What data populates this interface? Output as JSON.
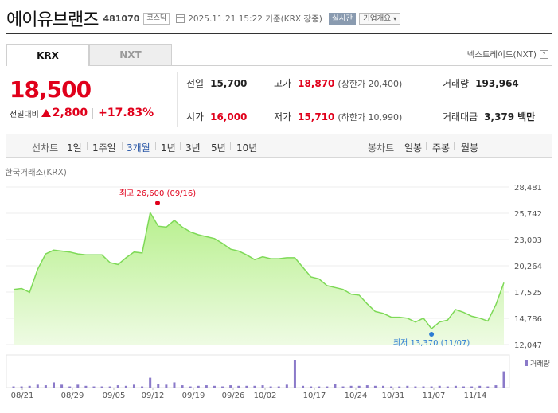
{
  "header": {
    "company_name": "에이유브랜즈",
    "stock_code": "481070",
    "market": "코스닥",
    "timestamp": "2025.11.21 15:22 기준(KRX 장중)",
    "realtime_label": "실시간",
    "overview_label": "기업개요"
  },
  "tabs": [
    {
      "label": "KRX",
      "selected": true
    },
    {
      "label": "NXT",
      "selected": false
    }
  ],
  "nextrade": {
    "label": "넥스트레이드(NXT)",
    "help": "?"
  },
  "price": {
    "current": "18,500",
    "change_label": "전일대비",
    "change_amount": "2,800",
    "change_percent": "+17.83%"
  },
  "stats": {
    "prev_close": {
      "label": "전일",
      "value": "15,700"
    },
    "open": {
      "label": "시가",
      "value": "16,000"
    },
    "high": {
      "label": "고가",
      "value": "18,870",
      "sub": "(상한가 20,400)"
    },
    "low": {
      "label": "저가",
      "value": "15,710",
      "sub": "(하한가 10,990)"
    },
    "volume": {
      "label": "거래량",
      "value": "193,964"
    },
    "trade_value": {
      "label": "거래대금",
      "value": "3,379",
      "unit": "백만"
    }
  },
  "periods": {
    "line_label": "선차트",
    "line_options": [
      "1일",
      "1주일",
      "3개월",
      "1년",
      "3년",
      "5년",
      "10년"
    ],
    "selected": "3개월",
    "candle_label": "봉차트",
    "candle_options": [
      "일봉",
      "주봉",
      "월봉"
    ]
  },
  "exchange_label": "한국거래소(KRX)",
  "colors": {
    "up": "#e0001b",
    "line": "#7ed957",
    "volume": "#8b7ac9",
    "selected": "#2d5aa8"
  },
  "chart_data": {
    "type": "area",
    "yticks": [
      "28,481",
      "25,742",
      "23,003",
      "20,264",
      "17,525",
      "14,786",
      "12,047"
    ],
    "ylim": [
      12047,
      28481
    ],
    "xticks": [
      "08/21",
      "08/29",
      "09/05",
      "09/12",
      "09/19",
      "09/26",
      "10/02",
      "10/17",
      "10/24",
      "10/31",
      "11/07",
      "11/14"
    ],
    "values": [
      17800,
      17900,
      17500,
      19900,
      21500,
      21900,
      21800,
      21700,
      21500,
      21400,
      21400,
      21400,
      20600,
      20400,
      21100,
      21700,
      21600,
      25800,
      24400,
      24300,
      25000,
      24300,
      23800,
      23500,
      23300,
      23100,
      22600,
      22000,
      21800,
      21400,
      20900,
      21200,
      21000,
      21000,
      21100,
      21100,
      20100,
      19100,
      18900,
      18200,
      18000,
      17800,
      17300,
      17200,
      16300,
      15500,
      15300,
      14900,
      14900,
      14800,
      14400,
      14800,
      13700,
      14400,
      14600,
      15700,
      15400,
      15000,
      14800,
      14500,
      16200,
      18500
    ],
    "volumes": [
      2,
      2,
      3,
      5,
      4,
      9,
      5,
      2,
      5,
      3,
      2,
      2,
      2,
      4,
      3,
      5,
      2,
      17,
      6,
      5,
      9,
      4,
      2,
      3,
      4,
      3,
      2,
      4,
      3,
      3,
      3,
      4,
      2,
      2,
      5,
      48,
      3,
      2,
      2,
      2,
      6,
      2,
      3,
      3,
      4,
      3,
      3,
      2,
      2,
      3,
      2,
      2,
      2,
      3,
      2,
      3,
      2,
      2,
      3,
      2,
      4,
      28
    ],
    "high_label": "최고 26,600 (09/16)",
    "low_label": "최저 13,370 (11/07)",
    "volume_label": "거래량"
  }
}
